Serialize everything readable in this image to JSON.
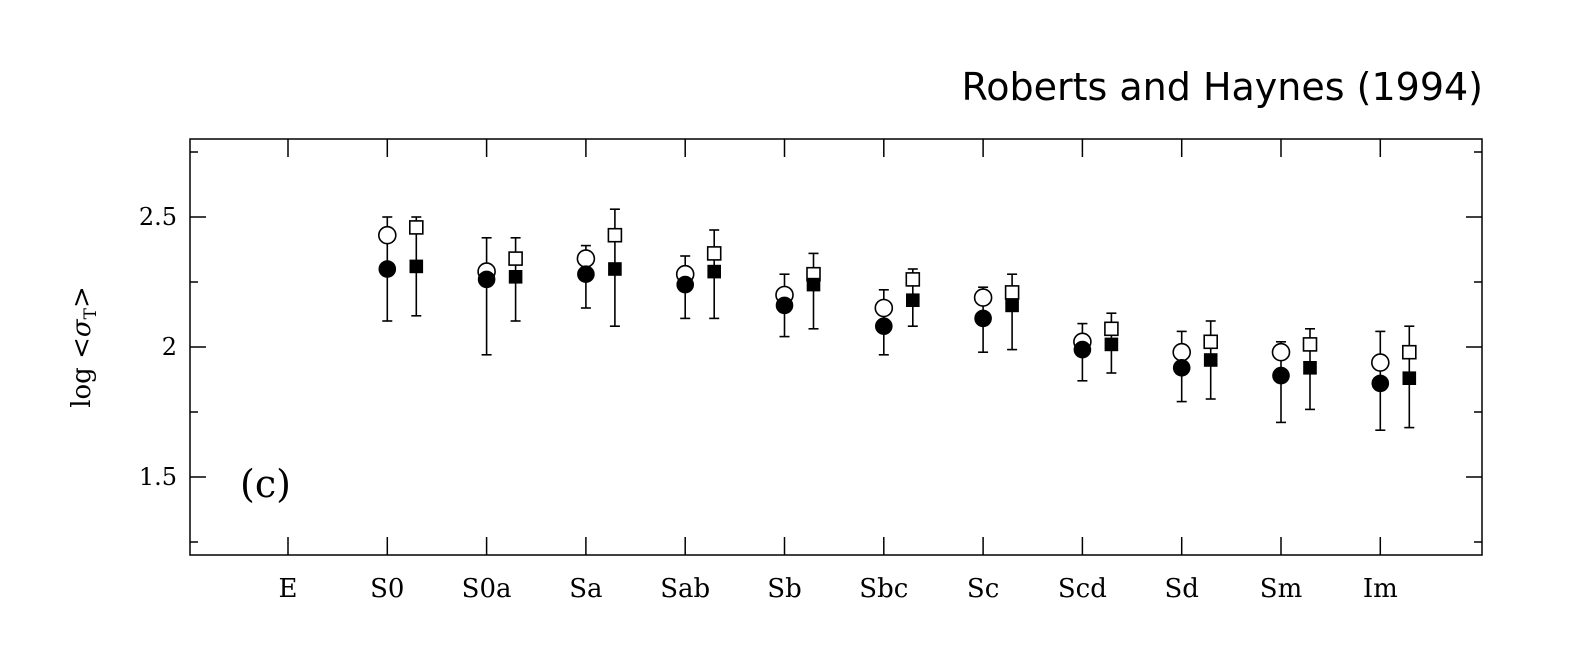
{
  "chart_data": {
    "type": "scatter",
    "credit": "Roberts and Haynes (1994)",
    "panel_label": "(c)",
    "ylabel": {
      "prefix": "log ",
      "open": "<",
      "sym": "σ",
      "sub": "T",
      "close": ">"
    },
    "ylim": [
      1.2,
      2.8
    ],
    "yticks": [
      1.5,
      2,
      2.5
    ],
    "ytick_labels": [
      "1.5",
      "2",
      "2.5"
    ],
    "categories": [
      "E",
      "S0",
      "S0a",
      "Sa",
      "Sab",
      "Sb",
      "Sbc",
      "Sc",
      "Scd",
      "Sd",
      "Sm",
      "Im"
    ],
    "series": [
      {
        "marker": "circle-open",
        "values": [
          null,
          2.43,
          2.29,
          2.34,
          2.28,
          2.2,
          2.15,
          2.19,
          2.02,
          1.98,
          1.98,
          1.94
        ]
      },
      {
        "marker": "circle-filled",
        "values": [
          null,
          2.3,
          2.26,
          2.28,
          2.24,
          2.16,
          2.08,
          2.11,
          1.99,
          1.92,
          1.89,
          1.86
        ]
      },
      {
        "marker": "square-open",
        "values": [
          null,
          2.46,
          2.34,
          2.43,
          2.36,
          2.28,
          2.26,
          2.21,
          2.07,
          2.02,
          2.01,
          1.98
        ]
      },
      {
        "marker": "square-filled",
        "values": [
          null,
          2.31,
          2.27,
          2.3,
          2.29,
          2.24,
          2.18,
          2.16,
          2.01,
          1.95,
          1.92,
          1.88
        ]
      }
    ],
    "error_bars": {
      "circles": {
        "low": [
          null,
          2.1,
          1.97,
          2.15,
          2.11,
          2.04,
          1.97,
          1.98,
          1.87,
          1.79,
          1.71,
          1.68
        ],
        "high": [
          null,
          2.5,
          2.42,
          2.39,
          2.35,
          2.28,
          2.22,
          2.23,
          2.09,
          2.06,
          2.02,
          2.06
        ]
      },
      "squares": {
        "low": [
          null,
          2.12,
          2.1,
          2.08,
          2.11,
          2.07,
          2.08,
          1.99,
          1.9,
          1.8,
          1.76,
          1.69
        ],
        "high": [
          null,
          2.5,
          2.42,
          2.53,
          2.45,
          2.36,
          2.3,
          2.28,
          2.13,
          2.1,
          2.07,
          2.08
        ]
      }
    }
  }
}
